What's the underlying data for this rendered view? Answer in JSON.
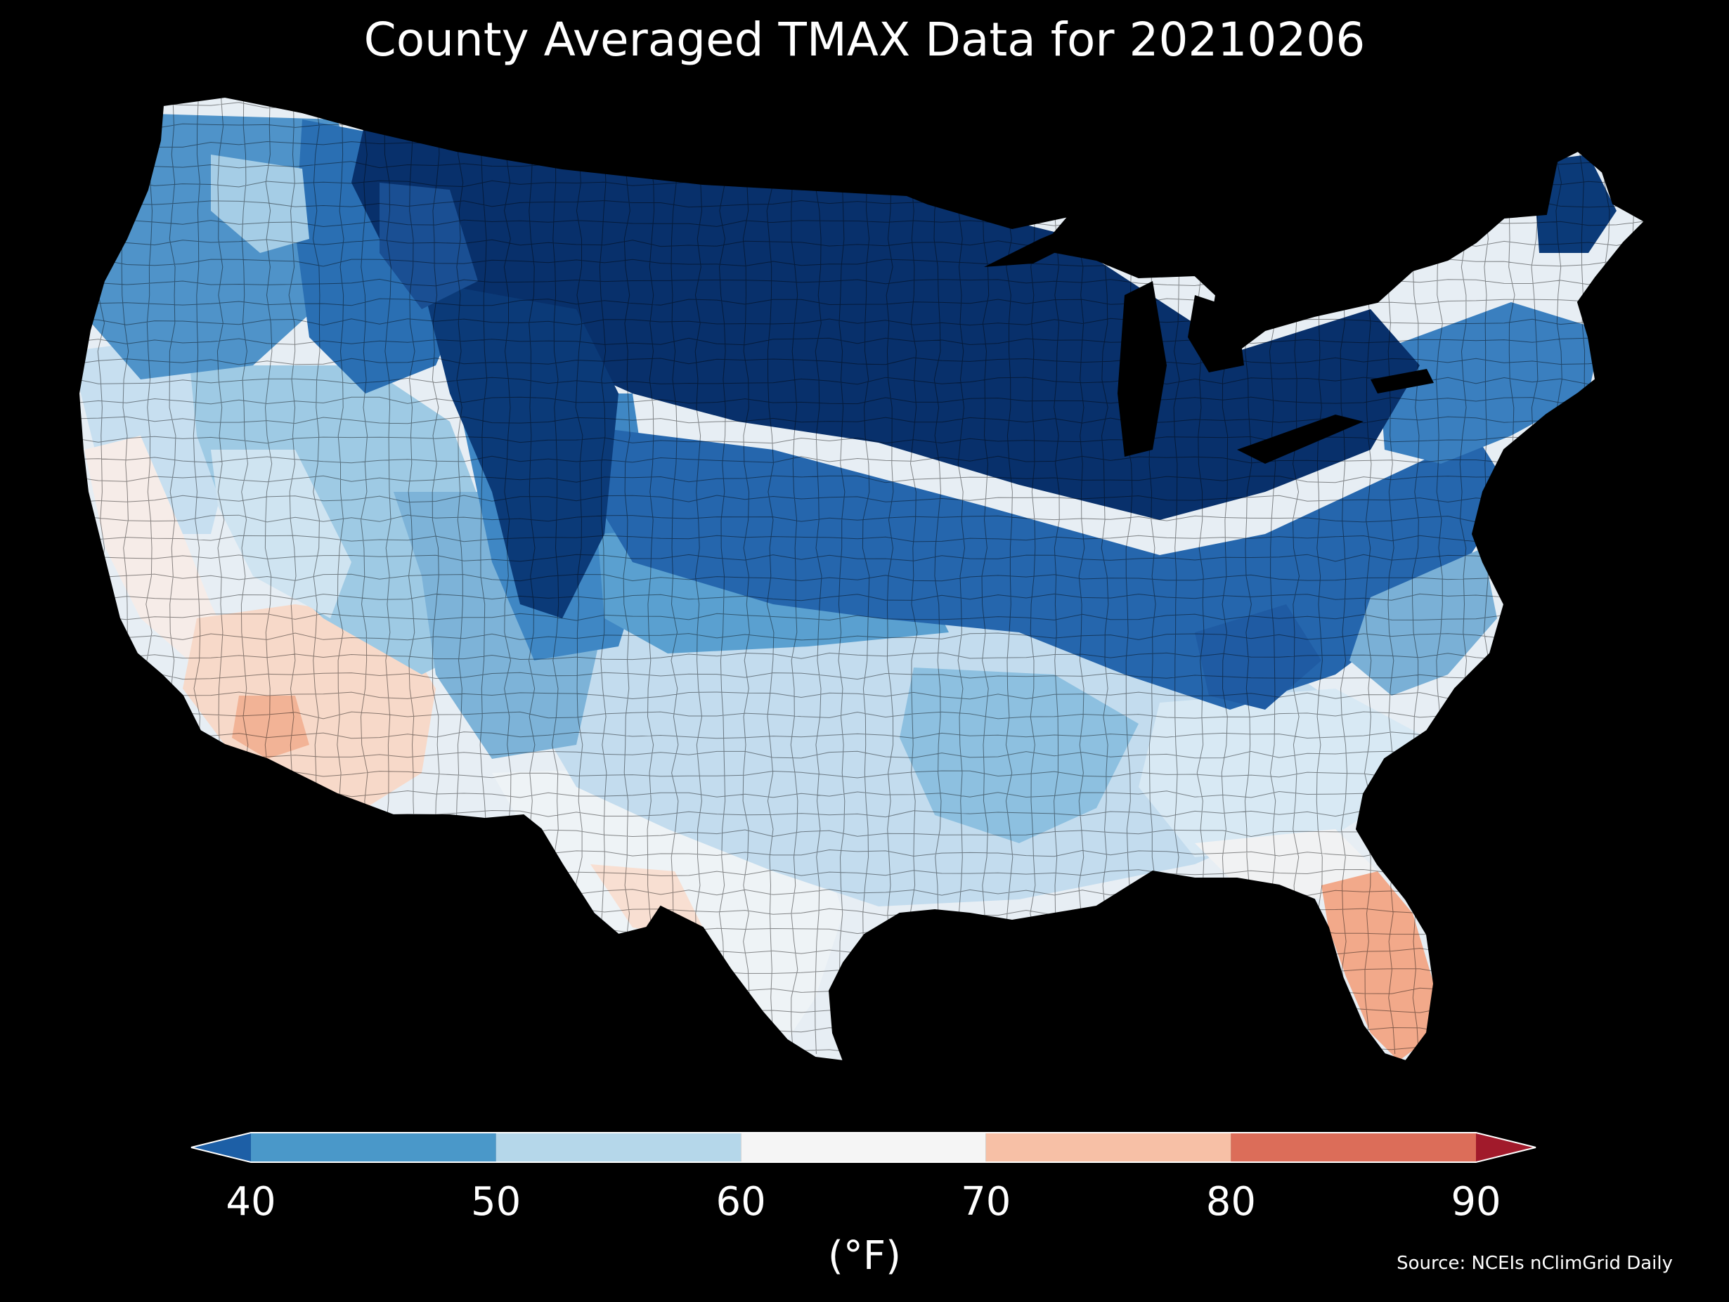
{
  "title": "County Averaged TMAX Data for 20210206",
  "colorbar": {
    "ticks": [
      "40",
      "50",
      "60",
      "70",
      "80",
      "90"
    ],
    "units": "(°F)",
    "bins": [
      {
        "from": 40,
        "to": 50,
        "color": "#4a98c9"
      },
      {
        "from": 50,
        "to": 60,
        "color": "#b5d7ea"
      },
      {
        "from": 60,
        "to": 70,
        "color": "#f5f5f5"
      },
      {
        "from": 70,
        "to": 80,
        "color": "#f7c0a6"
      },
      {
        "from": 80,
        "to": 90,
        "color": "#dc6d59"
      }
    ],
    "under_color": "#1d5fa6",
    "over_color": "#a11a2b"
  },
  "source": "Source: NCEIs nClimGrid Daily",
  "map": {
    "background": "#000000",
    "palette": {
      "very_cold": "#08306b",
      "cold_dark": "#1e5ba5",
      "cold": "#3f88c5",
      "cool": "#7fb6da",
      "mild": "#c4dff0",
      "neutral": "#eef2f5",
      "warm": "#f8d8c8",
      "hot": "#f0a07e"
    }
  }
}
